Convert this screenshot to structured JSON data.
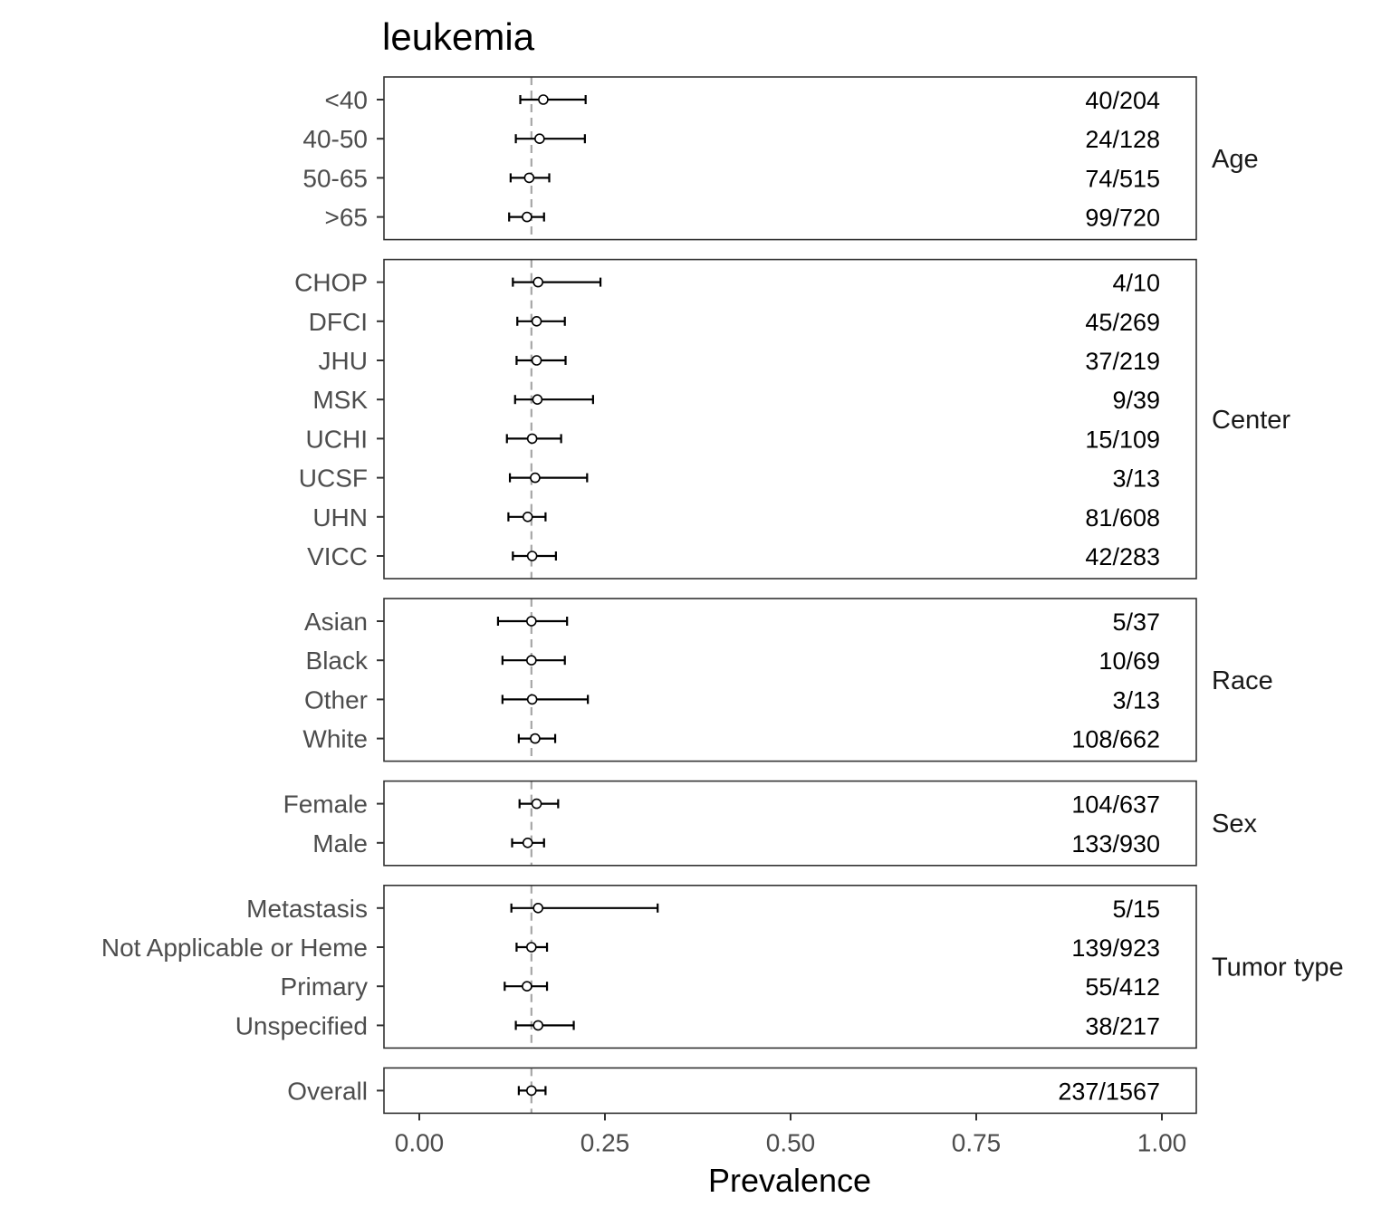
{
  "chart_data": {
    "type": "scatter",
    "title": "leukemia",
    "xlabel": "Prevalence",
    "xlim": [
      0,
      1
    ],
    "xticks": [
      "0.00",
      "0.25",
      "0.50",
      "0.75",
      "1.00"
    ],
    "reference_line": 0.151,
    "grid": false,
    "panels": [
      {
        "name": "Age",
        "rows": [
          {
            "label": "<40",
            "estimate": 0.167,
            "lower": 0.136,
            "upper": 0.224,
            "count": "40/204"
          },
          {
            "label": "40-50",
            "estimate": 0.162,
            "lower": 0.13,
            "upper": 0.223,
            "count": "24/128"
          },
          {
            "label": "50-65",
            "estimate": 0.148,
            "lower": 0.123,
            "upper": 0.175,
            "count": "74/515"
          },
          {
            "label": ">65",
            "estimate": 0.145,
            "lower": 0.121,
            "upper": 0.168,
            "count": "99/720"
          }
        ]
      },
      {
        "name": "Center",
        "rows": [
          {
            "label": "CHOP",
            "estimate": 0.16,
            "lower": 0.126,
            "upper": 0.244,
            "count": "4/10"
          },
          {
            "label": "DFCI",
            "estimate": 0.158,
            "lower": 0.132,
            "upper": 0.196,
            "count": "45/269"
          },
          {
            "label": "JHU",
            "estimate": 0.158,
            "lower": 0.131,
            "upper": 0.197,
            "count": "37/219"
          },
          {
            "label": "MSK",
            "estimate": 0.159,
            "lower": 0.129,
            "upper": 0.234,
            "count": "9/39"
          },
          {
            "label": "UCHI",
            "estimate": 0.152,
            "lower": 0.118,
            "upper": 0.191,
            "count": "15/109"
          },
          {
            "label": "UCSF",
            "estimate": 0.156,
            "lower": 0.122,
            "upper": 0.226,
            "count": "3/13"
          },
          {
            "label": "UHN",
            "estimate": 0.146,
            "lower": 0.12,
            "upper": 0.17,
            "count": "81/608"
          },
          {
            "label": "VICC",
            "estimate": 0.152,
            "lower": 0.126,
            "upper": 0.184,
            "count": "42/283"
          }
        ]
      },
      {
        "name": "Race",
        "rows": [
          {
            "label": "Asian",
            "estimate": 0.151,
            "lower": 0.106,
            "upper": 0.199,
            "count": "5/37"
          },
          {
            "label": "Black",
            "estimate": 0.151,
            "lower": 0.112,
            "upper": 0.196,
            "count": "10/69"
          },
          {
            "label": "Other",
            "estimate": 0.152,
            "lower": 0.112,
            "upper": 0.227,
            "count": "3/13"
          },
          {
            "label": "White",
            "estimate": 0.156,
            "lower": 0.134,
            "upper": 0.183,
            "count": "108/662"
          }
        ]
      },
      {
        "name": "Sex",
        "rows": [
          {
            "label": "Female",
            "estimate": 0.158,
            "lower": 0.135,
            "upper": 0.187,
            "count": "104/637"
          },
          {
            "label": "Male",
            "estimate": 0.146,
            "lower": 0.125,
            "upper": 0.168,
            "count": "133/930"
          }
        ]
      },
      {
        "name": "Tumor type",
        "rows": [
          {
            "label": "Metastasis",
            "estimate": 0.16,
            "lower": 0.124,
            "upper": 0.321,
            "count": "5/15"
          },
          {
            "label": "Not Applicable or Heme",
            "estimate": 0.151,
            "lower": 0.131,
            "upper": 0.172,
            "count": "139/923"
          },
          {
            "label": "Primary",
            "estimate": 0.145,
            "lower": 0.115,
            "upper": 0.172,
            "count": "55/412"
          },
          {
            "label": "Unspecified",
            "estimate": 0.16,
            "lower": 0.13,
            "upper": 0.208,
            "count": "38/217"
          }
        ]
      },
      {
        "name": "",
        "rows": [
          {
            "label": "Overall",
            "estimate": 0.151,
            "lower": 0.134,
            "upper": 0.17,
            "count": "237/1567"
          }
        ]
      }
    ]
  }
}
